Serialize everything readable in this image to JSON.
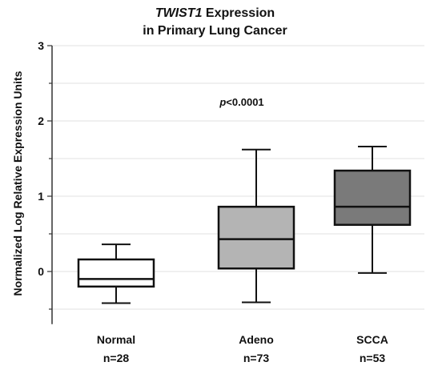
{
  "chart_data": {
    "type": "box",
    "title": {
      "line1_italic": "TWIST1",
      "line1_rest": " Expression",
      "line2": "in Primary Lung Cancer"
    },
    "xlabel": "",
    "ylabel": "Normalized Log Relative Expression Units",
    "ylim": [
      -0.7,
      3
    ],
    "yticks": [
      0,
      1,
      2,
      3
    ],
    "grid": true,
    "annotation": {
      "italic": "p",
      "rest": "<0.0001"
    },
    "categories": [
      "Normal",
      "Adeno",
      "SCCA"
    ],
    "counts": [
      "n=28",
      "n=73",
      "n=53"
    ],
    "boxes": [
      {
        "name": "Normal",
        "min": -0.42,
        "q1": -0.2,
        "median": -0.1,
        "q3": 0.16,
        "max": 0.36,
        "fill": "#ffffff"
      },
      {
        "name": "Adeno",
        "min": -0.41,
        "q1": 0.04,
        "median": 0.43,
        "q3": 0.86,
        "max": 1.62,
        "fill": "#b4b4b4"
      },
      {
        "name": "SCCA",
        "min": -0.02,
        "q1": 0.62,
        "median": 0.86,
        "q3": 1.34,
        "max": 1.66,
        "fill": "#7a7a7a"
      }
    ]
  }
}
